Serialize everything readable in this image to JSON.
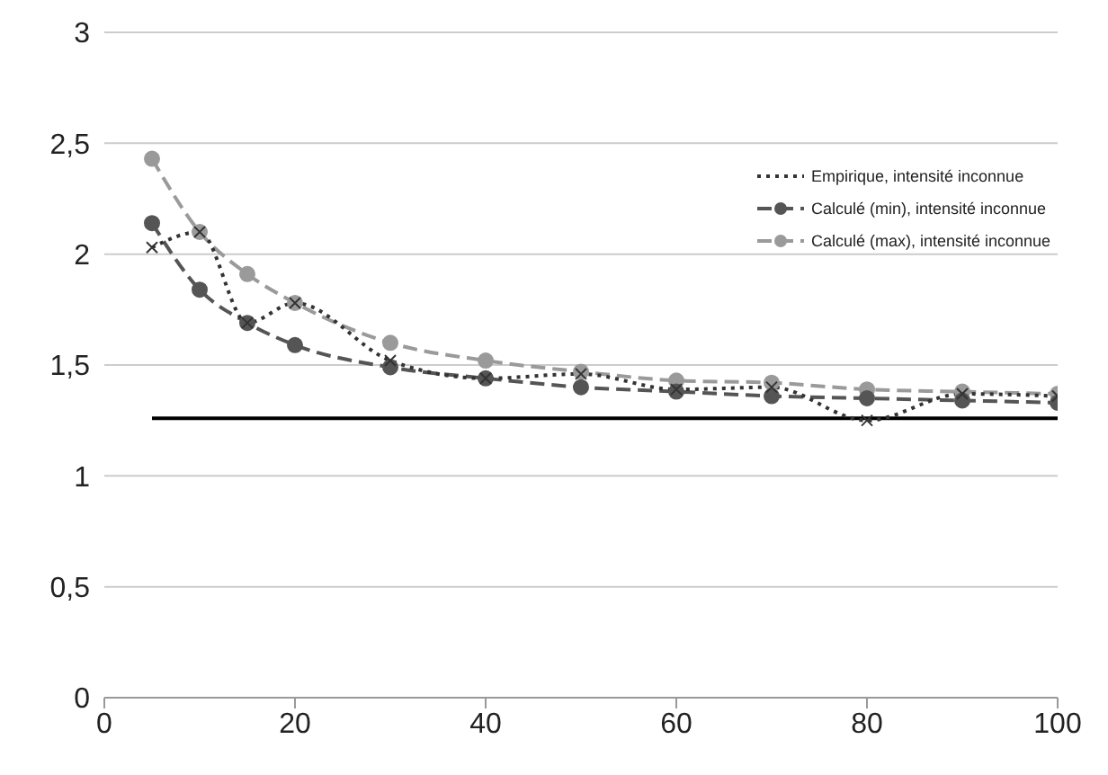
{
  "chart_data": {
    "type": "line",
    "x": [
      5,
      10,
      15,
      20,
      30,
      40,
      50,
      60,
      70,
      80,
      90,
      100
    ],
    "series": [
      {
        "name": "Empirique, intensité inconnue",
        "color": "#333333",
        "line_style": "dotted",
        "marker": "cross",
        "values": [
          2.03,
          2.1,
          1.69,
          1.78,
          1.52,
          1.44,
          1.46,
          1.39,
          1.4,
          1.25,
          1.37,
          1.36
        ]
      },
      {
        "name": "Calculé (min), intensité inconnue",
        "color": "#555555",
        "line_style": "dashed",
        "marker": "circle",
        "values": [
          2.14,
          1.84,
          1.69,
          1.59,
          1.49,
          1.44,
          1.4,
          1.38,
          1.36,
          1.35,
          1.34,
          1.33
        ]
      },
      {
        "name": "Calculé (max), intensité inconnue",
        "color": "#9a9a9a",
        "line_style": "dashed",
        "marker": "circle",
        "values": [
          2.43,
          2.1,
          1.91,
          1.78,
          1.6,
          1.52,
          1.47,
          1.43,
          1.42,
          1.39,
          1.38,
          1.37
        ]
      },
      {
        "color": "#000000",
        "line_style": "solid",
        "marker": "none",
        "values": [
          1.26,
          1.26,
          1.26,
          1.26,
          1.26,
          1.26,
          1.26,
          1.26,
          1.26,
          1.26,
          1.26,
          1.26
        ]
      }
    ],
    "xlim": [
      0,
      100
    ],
    "xticks": [
      0,
      20,
      40,
      60,
      80,
      100
    ],
    "ylim": [
      0,
      3
    ],
    "yticks": [
      0,
      {
        "value": 0.5,
        "label": "0,5"
      },
      1,
      {
        "value": 1.5,
        "label": "1,5"
      },
      2,
      {
        "value": 2.5,
        "label": "2,5"
      },
      3
    ],
    "grid": "y",
    "legend": "top right"
  }
}
